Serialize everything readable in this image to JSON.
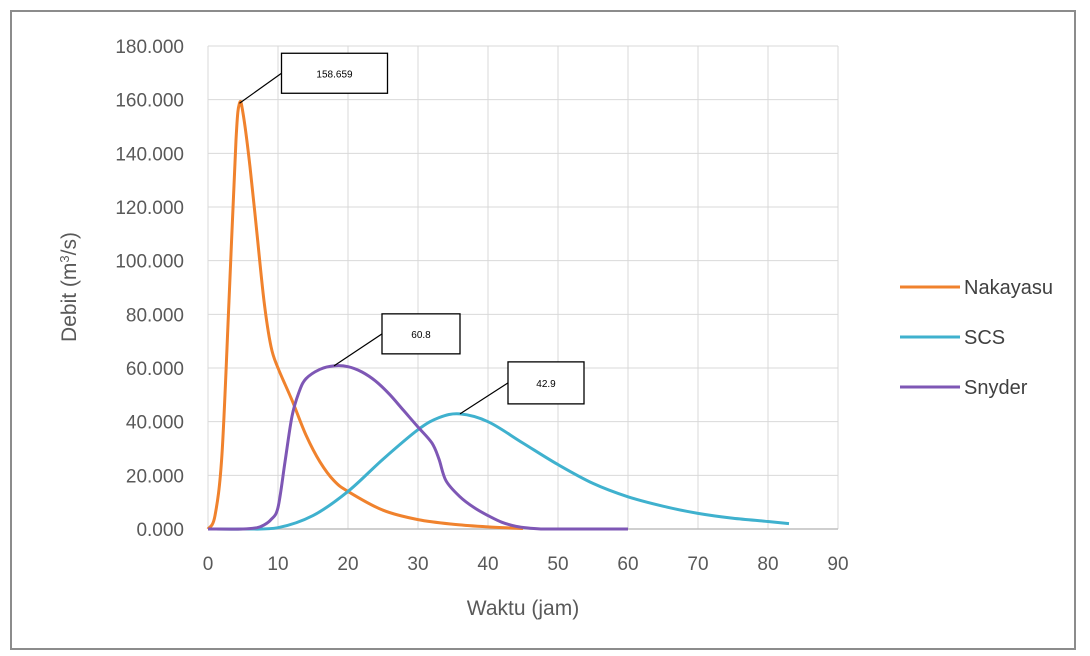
{
  "chart_data": {
    "type": "line",
    "title": "",
    "xlabel": "Waktu (jam)",
    "ylabel_parts": [
      "Debit (m",
      "3",
      "/s)"
    ],
    "xlim": [
      0,
      90
    ],
    "ylim": [
      0,
      180
    ],
    "x_ticks": [
      "0",
      "10",
      "20",
      "30",
      "40",
      "50",
      "60",
      "70",
      "80",
      "90"
    ],
    "y_ticks": [
      "0.000",
      "20.000",
      "40.000",
      "60.000",
      "80.000",
      "100.000",
      "120.000",
      "140.000",
      "160.000",
      "180.000"
    ],
    "grid": true,
    "legend_position": "right",
    "series": [
      {
        "name": "Nakayasu",
        "color": "#F0822D",
        "x": [
          0,
          1,
          2,
          3,
          4,
          4.5,
          5,
          6,
          7,
          8,
          9,
          10,
          12,
          14,
          16,
          18,
          20,
          25,
          30,
          35,
          40,
          45
        ],
        "y": [
          0,
          5,
          28,
          85,
          145,
          158.659,
          155,
          135,
          110,
          85,
          68,
          60,
          48,
          35,
          25,
          18,
          14,
          7,
          3.5,
          1.8,
          0.8,
          0.2
        ]
      },
      {
        "name": "SCS",
        "color": "#3FB1CE",
        "x": [
          0,
          5,
          10,
          15,
          20,
          25,
          30,
          33,
          36,
          40,
          45,
          50,
          55,
          60,
          65,
          70,
          75,
          80,
          83
        ],
        "y": [
          0,
          0,
          0.5,
          5,
          14,
          26,
          37,
          41.5,
          42.9,
          40,
          32,
          24,
          17,
          12,
          8.5,
          5.8,
          4,
          2.8,
          2
        ]
      },
      {
        "name": "Snyder",
        "color": "#7E57B5",
        "x": [
          0,
          5,
          7,
          8,
          9,
          10,
          11,
          12,
          13,
          14,
          16,
          18,
          20,
          22,
          24,
          26,
          28,
          30,
          32,
          33,
          34,
          36,
          38,
          40,
          42,
          44,
          46,
          48,
          50,
          55,
          60
        ],
        "y": [
          0,
          0,
          0.5,
          1.5,
          3.5,
          8,
          25,
          42,
          51,
          56,
          59.5,
          60.8,
          60.5,
          58.5,
          55,
          50,
          44,
          38,
          32,
          26,
          18,
          12,
          8,
          5,
          2.5,
          1,
          0.3,
          0,
          0,
          0,
          0
        ]
      }
    ],
    "annotations": [
      {
        "series": "Nakayasu",
        "text": "158.659",
        "x": 4.5,
        "y": 158.659
      },
      {
        "series": "Snyder",
        "text": "60.8",
        "x": 18,
        "y": 60.8
      },
      {
        "series": "SCS",
        "text": "42.9",
        "x": 36,
        "y": 42.9
      }
    ]
  }
}
